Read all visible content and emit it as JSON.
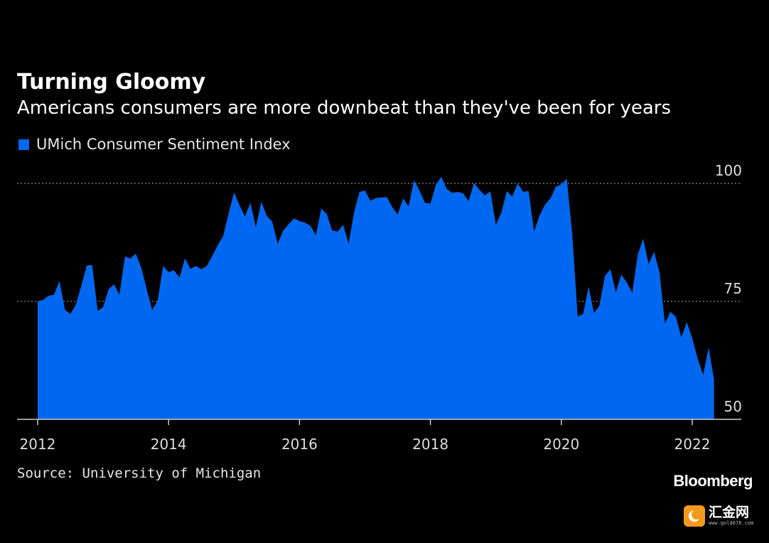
{
  "header": {
    "title": "Turning Gloomy",
    "subtitle": "Americans consumers are more downbeat than they've been for years"
  },
  "footer": {
    "source": "Source: University of Michigan",
    "brand": "Bloomberg"
  },
  "watermark": {
    "name": "汇金网",
    "url": "www.gold678.com",
    "icon": "crescent-logo-icon",
    "color": "#f39a1e"
  },
  "chart_data": {
    "type": "area",
    "series": [
      {
        "name": "UMich Consumer Sentiment Index",
        "color": "#0068f0",
        "x_start": "2012-01",
        "x_end": "2022-06",
        "values": [
          75.0,
          75.3,
          76.2,
          76.4,
          79.3,
          73.2,
          72.3,
          74.3,
          78.3,
          82.6,
          82.7,
          72.9,
          73.8,
          77.6,
          78.6,
          76.4,
          84.5,
          84.1,
          85.1,
          82.1,
          77.5,
          73.2,
          75.1,
          82.5,
          81.2,
          81.6,
          80.0,
          84.1,
          81.9,
          82.5,
          81.8,
          82.5,
          84.6,
          86.9,
          88.8,
          93.6,
          98.1,
          95.4,
          93.0,
          95.9,
          90.7,
          96.1,
          93.1,
          91.9,
          87.2,
          90.0,
          91.3,
          92.6,
          92.0,
          91.7,
          91.0,
          89.0,
          94.7,
          93.5,
          90.0,
          89.8,
          91.2,
          87.2,
          93.8,
          98.2,
          98.5,
          96.3,
          96.9,
          97.0,
          97.1,
          95.0,
          93.4,
          96.8,
          95.1,
          100.7,
          98.5,
          95.9,
          95.7,
          99.7,
          101.4,
          98.8,
          98.0,
          98.2,
          97.9,
          96.2,
          100.1,
          98.6,
          97.5,
          98.3,
          91.2,
          93.8,
          98.4,
          97.2,
          100.0,
          98.2,
          98.4,
          89.8,
          93.2,
          95.5,
          96.8,
          99.3,
          99.8,
          101.0,
          89.1,
          71.8,
          72.3,
          78.1,
          72.5,
          74.1,
          80.4,
          81.8,
          76.9,
          80.7,
          79.0,
          76.8,
          84.9,
          88.3,
          82.9,
          85.5,
          81.2,
          70.3,
          72.8,
          71.7,
          67.4,
          70.6,
          67.2,
          62.8,
          59.4,
          65.2,
          58.4
        ]
      }
    ],
    "x_ticks": [
      "2012",
      "2014",
      "2016",
      "2018",
      "2020",
      "2022"
    ],
    "y_ticks": [
      50,
      75,
      100
    ],
    "ylim": [
      50,
      103
    ],
    "grid": "dotted horizontal",
    "legend": "top-left"
  }
}
